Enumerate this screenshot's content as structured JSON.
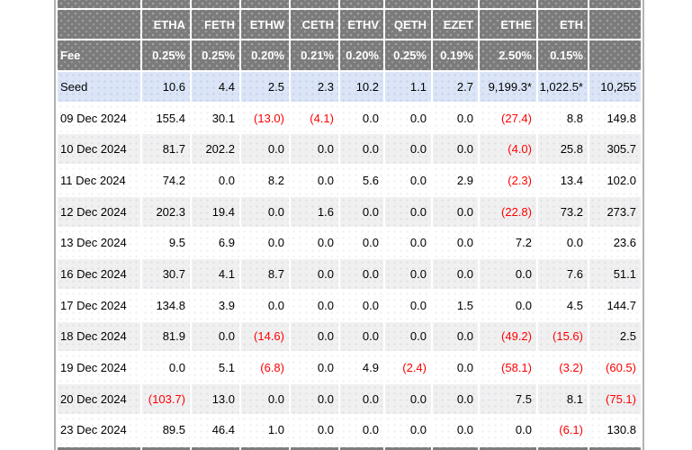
{
  "chart_data": {
    "type": "table",
    "columns": [
      "",
      "ETHA",
      "FETH",
      "ETHW",
      "CETH",
      "ETHV",
      "QETH",
      "EZET",
      "ETHE",
      "ETH",
      ""
    ],
    "fee_row": {
      "label": "Fee",
      "values": [
        "0.25%",
        "0.25%",
        "0.20%",
        "0.21%",
        "0.20%",
        "0.25%",
        "0.19%",
        "2.50%",
        "0.15%"
      ]
    },
    "rows": [
      {
        "label": "Seed",
        "seed": true,
        "values": [
          "10.6",
          "4.4",
          "2.5",
          "2.3",
          "10.2",
          "1.1",
          "2.7",
          "9,199.3*",
          "1,022.5*"
        ],
        "total": "10,255"
      },
      {
        "label": "09 Dec 2024",
        "values": [
          "155.4",
          "30.1",
          "(13.0)",
          "(4.1)",
          "0.0",
          "0.0",
          "0.0",
          "(27.4)",
          "8.8"
        ],
        "total": "149.8"
      },
      {
        "label": "10 Dec 2024",
        "values": [
          "81.7",
          "202.2",
          "0.0",
          "0.0",
          "0.0",
          "0.0",
          "0.0",
          "(4.0)",
          "25.8"
        ],
        "total": "305.7"
      },
      {
        "label": "11 Dec 2024",
        "values": [
          "74.2",
          "0.0",
          "8.2",
          "0.0",
          "5.6",
          "0.0",
          "2.9",
          "(2.3)",
          "13.4"
        ],
        "total": "102.0"
      },
      {
        "label": "12 Dec 2024",
        "values": [
          "202.3",
          "19.4",
          "0.0",
          "1.6",
          "0.0",
          "0.0",
          "0.0",
          "(22.8)",
          "73.2"
        ],
        "total": "273.7"
      },
      {
        "label": "13 Dec 2024",
        "values": [
          "9.5",
          "6.9",
          "0.0",
          "0.0",
          "0.0",
          "0.0",
          "0.0",
          "7.2",
          "0.0"
        ],
        "total": "23.6"
      },
      {
        "label": "16 Dec 2024",
        "values": [
          "30.7",
          "4.1",
          "8.7",
          "0.0",
          "0.0",
          "0.0",
          "0.0",
          "0.0",
          "7.6"
        ],
        "total": "51.1"
      },
      {
        "label": "17 Dec 2024",
        "values": [
          "134.8",
          "3.9",
          "0.0",
          "0.0",
          "0.0",
          "0.0",
          "1.5",
          "0.0",
          "4.5"
        ],
        "total": "144.7"
      },
      {
        "label": "18 Dec 2024",
        "values": [
          "81.9",
          "0.0",
          "(14.6)",
          "0.0",
          "0.0",
          "0.0",
          "0.0",
          "(49.2)",
          "(15.6)"
        ],
        "total": "2.5"
      },
      {
        "label": "19 Dec 2024",
        "values": [
          "0.0",
          "5.1",
          "(6.8)",
          "0.0",
          "4.9",
          "(2.4)",
          "0.0",
          "(58.1)",
          "(3.2)"
        ],
        "total": "(60.5)"
      },
      {
        "label": "20 Dec 2024",
        "values": [
          "(103.7)",
          "13.0",
          "0.0",
          "0.0",
          "0.0",
          "0.0",
          "0.0",
          "7.5",
          "8.1"
        ],
        "total": "(75.1)"
      },
      {
        "label": "23 Dec 2024",
        "values": [
          "89.5",
          "46.4",
          "1.0",
          "0.0",
          "0.0",
          "0.0",
          "0.0",
          "0.0",
          "(6.1)"
        ],
        "total": "130.8"
      }
    ],
    "layout_hints": {
      "negative_format": "parentheses, red text",
      "header_style": "dark gray dotted cells, white bold text",
      "seed_row_highlight": true,
      "alternating_row_stripes": true,
      "clipped_gray_rows_at_top_and_bottom": true
    },
    "colors": {
      "header_gray": "#7b7b7b",
      "seed_row_blue": "#dbe5f7",
      "stripe_gray": "#f0f0f1",
      "negative_red": "#fe0000",
      "edge_line_gray": "#b0b0b0"
    }
  }
}
